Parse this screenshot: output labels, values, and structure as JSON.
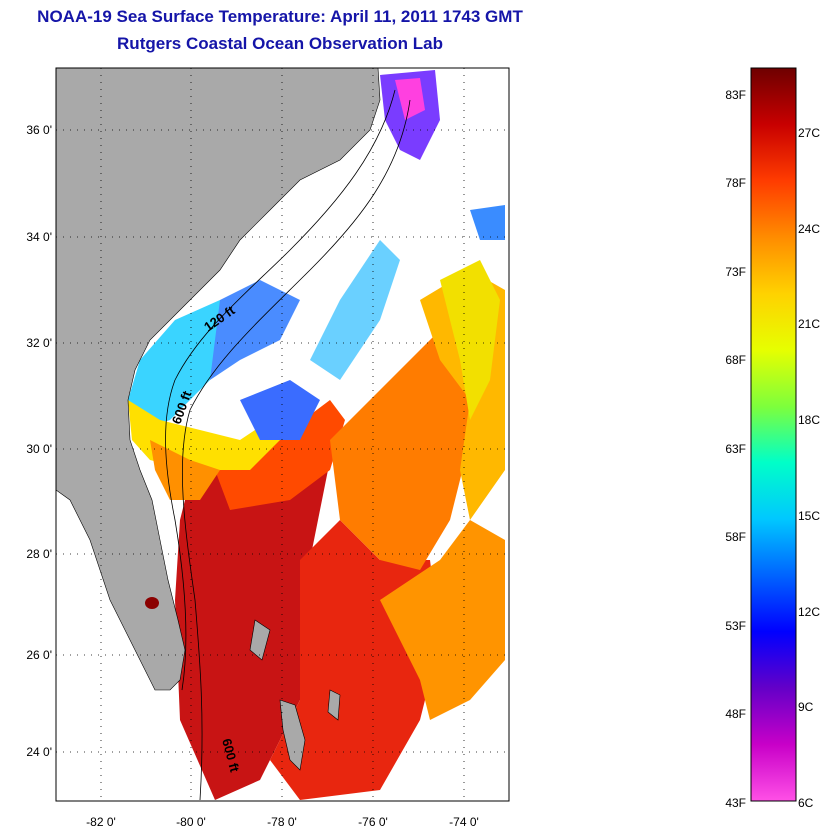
{
  "title": {
    "line1": "NOAA-19 Sea Surface Temperature:  April 11, 2011 1743 GMT",
    "line2": "Rutgers Coastal Ocean Observation Lab"
  },
  "map": {
    "lat_ticks": [
      "36 0'",
      "34 0'",
      "32 0'",
      "30 0'",
      "28 0'",
      "26 0'",
      "24 0'"
    ],
    "lon_ticks": [
      "-82 0'",
      "-80 0'",
      "-78 0'",
      "-76 0'",
      "-74 0'"
    ],
    "contour_labels": [
      "120 ft",
      "600 ft",
      "600 ft"
    ],
    "colors": {
      "land": "#a9a9a9",
      "cloud": "#ffffff",
      "frame": "#000000"
    }
  },
  "colorbar": {
    "fahrenheit_ticks": [
      "83F",
      "78F",
      "73F",
      "68F",
      "63F",
      "58F",
      "53F",
      "48F",
      "43F"
    ],
    "celsius_ticks": [
      "27C",
      "24C",
      "21C",
      "18C",
      "15C",
      "12C",
      "9C",
      "6C"
    ],
    "gradient_stops": [
      "#6e0000",
      "#c80000",
      "#ff3c00",
      "#ff8c00",
      "#ffd200",
      "#e6ff00",
      "#7dff3c",
      "#00ffc8",
      "#00c8ff",
      "#0064ff",
      "#0000ff",
      "#6400c8",
      "#c800c8",
      "#ff50e6"
    ]
  }
}
